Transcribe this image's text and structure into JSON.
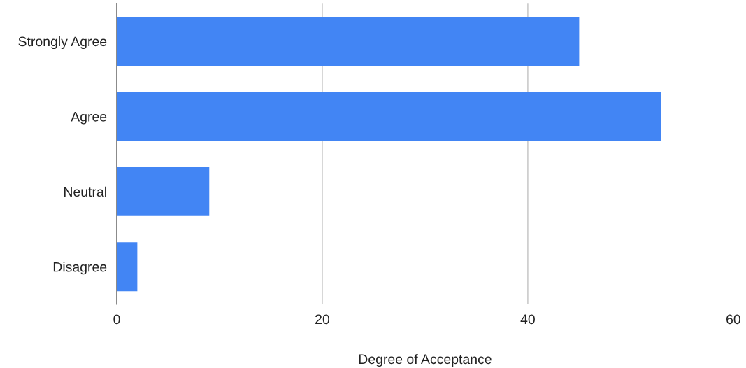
{
  "chart_data": {
    "type": "bar",
    "orientation": "horizontal",
    "xlabel": "Degree of Acceptance",
    "categories": [
      "Strongly Agree",
      "Agree",
      "Neutral",
      "Disagree"
    ],
    "values": [
      45,
      53,
      9,
      2
    ],
    "color": "#4285f4",
    "xlim": [
      0,
      60
    ],
    "xticks": [
      0,
      20,
      40,
      60
    ],
    "grid": "x"
  }
}
